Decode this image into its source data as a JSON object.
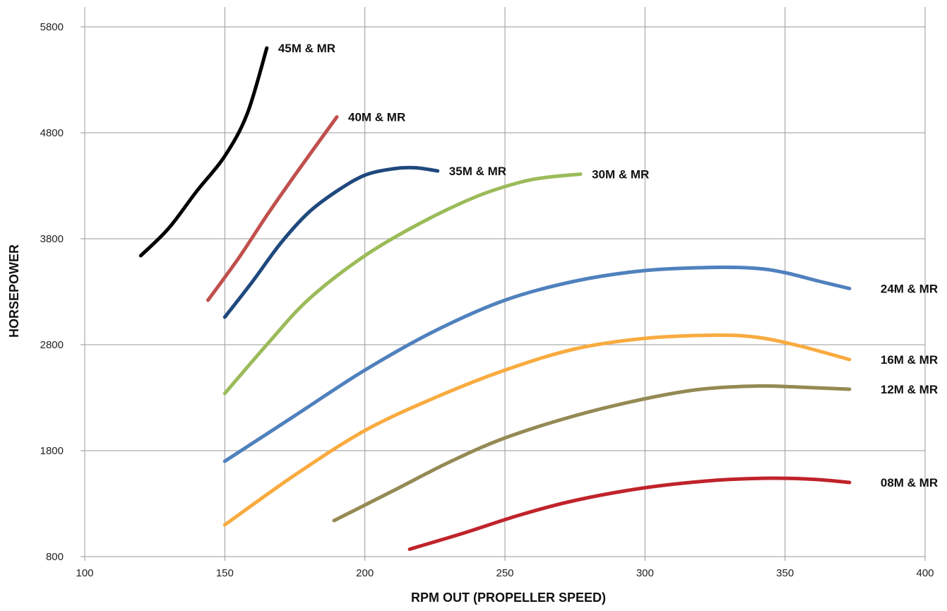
{
  "chart_data": {
    "type": "line",
    "xlabel": "RPM OUT (PROPELLER SPEED)",
    "ylabel": "HORSEPOWER",
    "xlim": [
      100,
      400
    ],
    "ylim": [
      800,
      5800
    ],
    "x_ticks": [
      100,
      150,
      200,
      250,
      300,
      350,
      400
    ],
    "y_ticks": [
      800,
      1800,
      2800,
      3800,
      4800,
      5800
    ],
    "grid": true,
    "series": [
      {
        "name": "45M & MR",
        "color": "#000000",
        "points": [
          [
            120,
            3640
          ],
          [
            130,
            3900
          ],
          [
            140,
            4250
          ],
          [
            150,
            4580
          ],
          [
            158,
            4980
          ],
          [
            165,
            5600
          ]
        ]
      },
      {
        "name": "40M & MR",
        "color": "#c0504d",
        "points": [
          [
            144,
            3220
          ],
          [
            155,
            3620
          ],
          [
            165,
            4020
          ],
          [
            175,
            4400
          ],
          [
            190,
            4950
          ]
        ]
      },
      {
        "name": "35M & MR",
        "color": "#1f497d",
        "points": [
          [
            150,
            3060
          ],
          [
            160,
            3400
          ],
          [
            170,
            3760
          ],
          [
            180,
            4050
          ],
          [
            190,
            4250
          ],
          [
            200,
            4400
          ],
          [
            210,
            4460
          ],
          [
            218,
            4470
          ],
          [
            226,
            4440
          ]
        ]
      },
      {
        "name": "30M & MR",
        "color": "#9bbb59",
        "points": [
          [
            150,
            2340
          ],
          [
            165,
            2800
          ],
          [
            180,
            3230
          ],
          [
            200,
            3640
          ],
          [
            220,
            3950
          ],
          [
            240,
            4200
          ],
          [
            255,
            4330
          ],
          [
            265,
            4380
          ],
          [
            277,
            4410
          ]
        ]
      },
      {
        "name": "24M & MR",
        "color": "#4f81bd",
        "points": [
          [
            150,
            1700
          ],
          [
            175,
            2130
          ],
          [
            200,
            2560
          ],
          [
            225,
            2930
          ],
          [
            250,
            3220
          ],
          [
            275,
            3400
          ],
          [
            300,
            3500
          ],
          [
            325,
            3530
          ],
          [
            340,
            3520
          ],
          [
            350,
            3480
          ],
          [
            362,
            3400
          ],
          [
            373,
            3330
          ]
        ]
      },
      {
        "name": "16M & MR",
        "color": "#f9ab3f",
        "points": [
          [
            150,
            1100
          ],
          [
            175,
            1570
          ],
          [
            200,
            1990
          ],
          [
            225,
            2300
          ],
          [
            250,
            2560
          ],
          [
            275,
            2760
          ],
          [
            300,
            2860
          ],
          [
            325,
            2890
          ],
          [
            340,
            2870
          ],
          [
            355,
            2790
          ],
          [
            373,
            2660
          ]
        ]
      },
      {
        "name": "12M & MR",
        "color": "#948a54",
        "points": [
          [
            189,
            1140
          ],
          [
            210,
            1420
          ],
          [
            230,
            1690
          ],
          [
            250,
            1920
          ],
          [
            275,
            2130
          ],
          [
            300,
            2290
          ],
          [
            320,
            2380
          ],
          [
            340,
            2410
          ],
          [
            355,
            2400
          ],
          [
            373,
            2380
          ]
        ]
      },
      {
        "name": "08M & MR",
        "color": "#c0232b",
        "points": [
          [
            216,
            870
          ],
          [
            235,
            1020
          ],
          [
            255,
            1190
          ],
          [
            275,
            1330
          ],
          [
            300,
            1450
          ],
          [
            325,
            1520
          ],
          [
            345,
            1540
          ],
          [
            360,
            1530
          ],
          [
            373,
            1500
          ]
        ]
      }
    ]
  }
}
